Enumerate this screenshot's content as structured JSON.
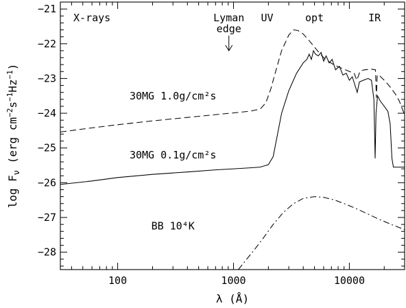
{
  "chart_data": {
    "type": "line",
    "title": "",
    "xlabel": "λ (Å)",
    "ylabel": "log F_ν (erg cm⁻²s⁻¹Hz⁻¹)",
    "xscale": "log",
    "xlim": [
      32,
      30000
    ],
    "ylim": [
      -28.5,
      -20.8
    ],
    "grid": false,
    "x_ticks": [
      {
        "v": 100,
        "label": "100"
      },
      {
        "v": 1000,
        "label": "1000"
      },
      {
        "v": 10000,
        "label": "10000"
      }
    ],
    "y_ticks": [
      {
        "v": -21,
        "label": "−21"
      },
      {
        "v": -22,
        "label": "−22"
      },
      {
        "v": -23,
        "label": "−23"
      },
      {
        "v": -24,
        "label": "−24"
      },
      {
        "v": -25,
        "label": "−25"
      },
      {
        "v": -26,
        "label": "−26"
      },
      {
        "v": -27,
        "label": "−27"
      },
      {
        "v": -28,
        "label": "−28"
      }
    ],
    "bands": [
      {
        "text": "X-rays",
        "x": 60,
        "y": -21.25
      },
      {
        "text": "UV",
        "x": 1950,
        "y": -21.25
      },
      {
        "text": "opt",
        "x": 5000,
        "y": -21.25
      },
      {
        "text": "IR",
        "x": 16500,
        "y": -21.25
      }
    ],
    "lyman_edge": {
      "lines": [
        "Lyman",
        "edge"
      ],
      "x": 912
    },
    "annotations": [
      {
        "text": "30MG  1.0g/cm²s",
        "x": 300,
        "y": -23.5
      },
      {
        "text": "30MG  0.1g/cm²s",
        "x": 300,
        "y": -25.2
      },
      {
        "text": "BB  10⁴K",
        "x": 300,
        "y": -27.25
      }
    ],
    "series": [
      {
        "style": "dashed",
        "points": [
          [
            32,
            -24.54
          ],
          [
            60,
            -24.42
          ],
          [
            100,
            -24.33
          ],
          [
            200,
            -24.22
          ],
          [
            400,
            -24.12
          ],
          [
            700,
            -24.04
          ],
          [
            1000,
            -23.99
          ],
          [
            1400,
            -23.94
          ],
          [
            1700,
            -23.88
          ],
          [
            1900,
            -23.7
          ],
          [
            2100,
            -23.3
          ],
          [
            2300,
            -22.82
          ],
          [
            2600,
            -22.2
          ],
          [
            3000,
            -21.75
          ],
          [
            3300,
            -21.6
          ],
          [
            3600,
            -21.62
          ],
          [
            4000,
            -21.72
          ],
          [
            4600,
            -21.95
          ],
          [
            5300,
            -22.2
          ],
          [
            6200,
            -22.45
          ],
          [
            7300,
            -22.6
          ],
          [
            8500,
            -22.7
          ],
          [
            9700,
            -22.78
          ],
          [
            11000,
            -22.85
          ],
          [
            11600,
            -23.05
          ],
          [
            12400,
            -22.78
          ],
          [
            13500,
            -22.75
          ],
          [
            15500,
            -22.73
          ],
          [
            16800,
            -22.75
          ],
          [
            17100,
            -23.55
          ],
          [
            17400,
            -22.9
          ],
          [
            18000,
            -22.9
          ],
          [
            20000,
            -23.05
          ],
          [
            22000,
            -23.2
          ],
          [
            25000,
            -23.45
          ],
          [
            27000,
            -23.65
          ],
          [
            30000,
            -24.05
          ]
        ]
      },
      {
        "style": "solid",
        "points": [
          [
            32,
            -26.05
          ],
          [
            60,
            -25.95
          ],
          [
            100,
            -25.85
          ],
          [
            200,
            -25.76
          ],
          [
            400,
            -25.69
          ],
          [
            700,
            -25.63
          ],
          [
            1000,
            -25.6
          ],
          [
            1400,
            -25.57
          ],
          [
            1700,
            -25.55
          ],
          [
            2000,
            -25.48
          ],
          [
            2200,
            -25.25
          ],
          [
            2400,
            -24.6
          ],
          [
            2600,
            -24.0
          ],
          [
            3000,
            -23.35
          ],
          [
            3500,
            -22.85
          ],
          [
            4000,
            -22.55
          ],
          [
            4300,
            -22.45
          ],
          [
            4500,
            -22.3
          ],
          [
            4700,
            -22.45
          ],
          [
            4900,
            -22.2
          ],
          [
            5100,
            -22.3
          ],
          [
            5400,
            -22.35
          ],
          [
            5700,
            -22.25
          ],
          [
            6000,
            -22.5
          ],
          [
            6300,
            -22.35
          ],
          [
            6700,
            -22.55
          ],
          [
            7100,
            -22.45
          ],
          [
            7600,
            -22.75
          ],
          [
            8200,
            -22.65
          ],
          [
            8800,
            -22.9
          ],
          [
            9400,
            -22.85
          ],
          [
            10000,
            -23.05
          ],
          [
            10600,
            -22.95
          ],
          [
            11200,
            -23.2
          ],
          [
            11700,
            -23.4
          ],
          [
            12200,
            -23.1
          ],
          [
            13200,
            -23.05
          ],
          [
            14500,
            -23.0
          ],
          [
            15500,
            -23.05
          ],
          [
            16300,
            -23.6
          ],
          [
            16700,
            -25.3
          ],
          [
            17000,
            -24.0
          ],
          [
            17500,
            -23.5
          ],
          [
            18500,
            -23.65
          ],
          [
            20000,
            -23.8
          ],
          [
            21500,
            -23.95
          ],
          [
            22500,
            -24.3
          ],
          [
            23300,
            -25.3
          ],
          [
            24000,
            -25.55
          ],
          [
            26000,
            -25.55
          ],
          [
            30000,
            -25.55
          ]
        ]
      },
      {
        "style": "dashdot",
        "points": [
          [
            1100,
            -28.5
          ],
          [
            1300,
            -28.2
          ],
          [
            1500,
            -27.95
          ],
          [
            1800,
            -27.6
          ],
          [
            2200,
            -27.2
          ],
          [
            2700,
            -26.85
          ],
          [
            3300,
            -26.6
          ],
          [
            4000,
            -26.45
          ],
          [
            5000,
            -26.4
          ],
          [
            6000,
            -26.42
          ],
          [
            7500,
            -26.5
          ],
          [
            9000,
            -26.6
          ],
          [
            11000,
            -26.72
          ],
          [
            14000,
            -26.88
          ],
          [
            18000,
            -27.05
          ],
          [
            23000,
            -27.2
          ],
          [
            30000,
            -27.35
          ]
        ]
      }
    ]
  }
}
